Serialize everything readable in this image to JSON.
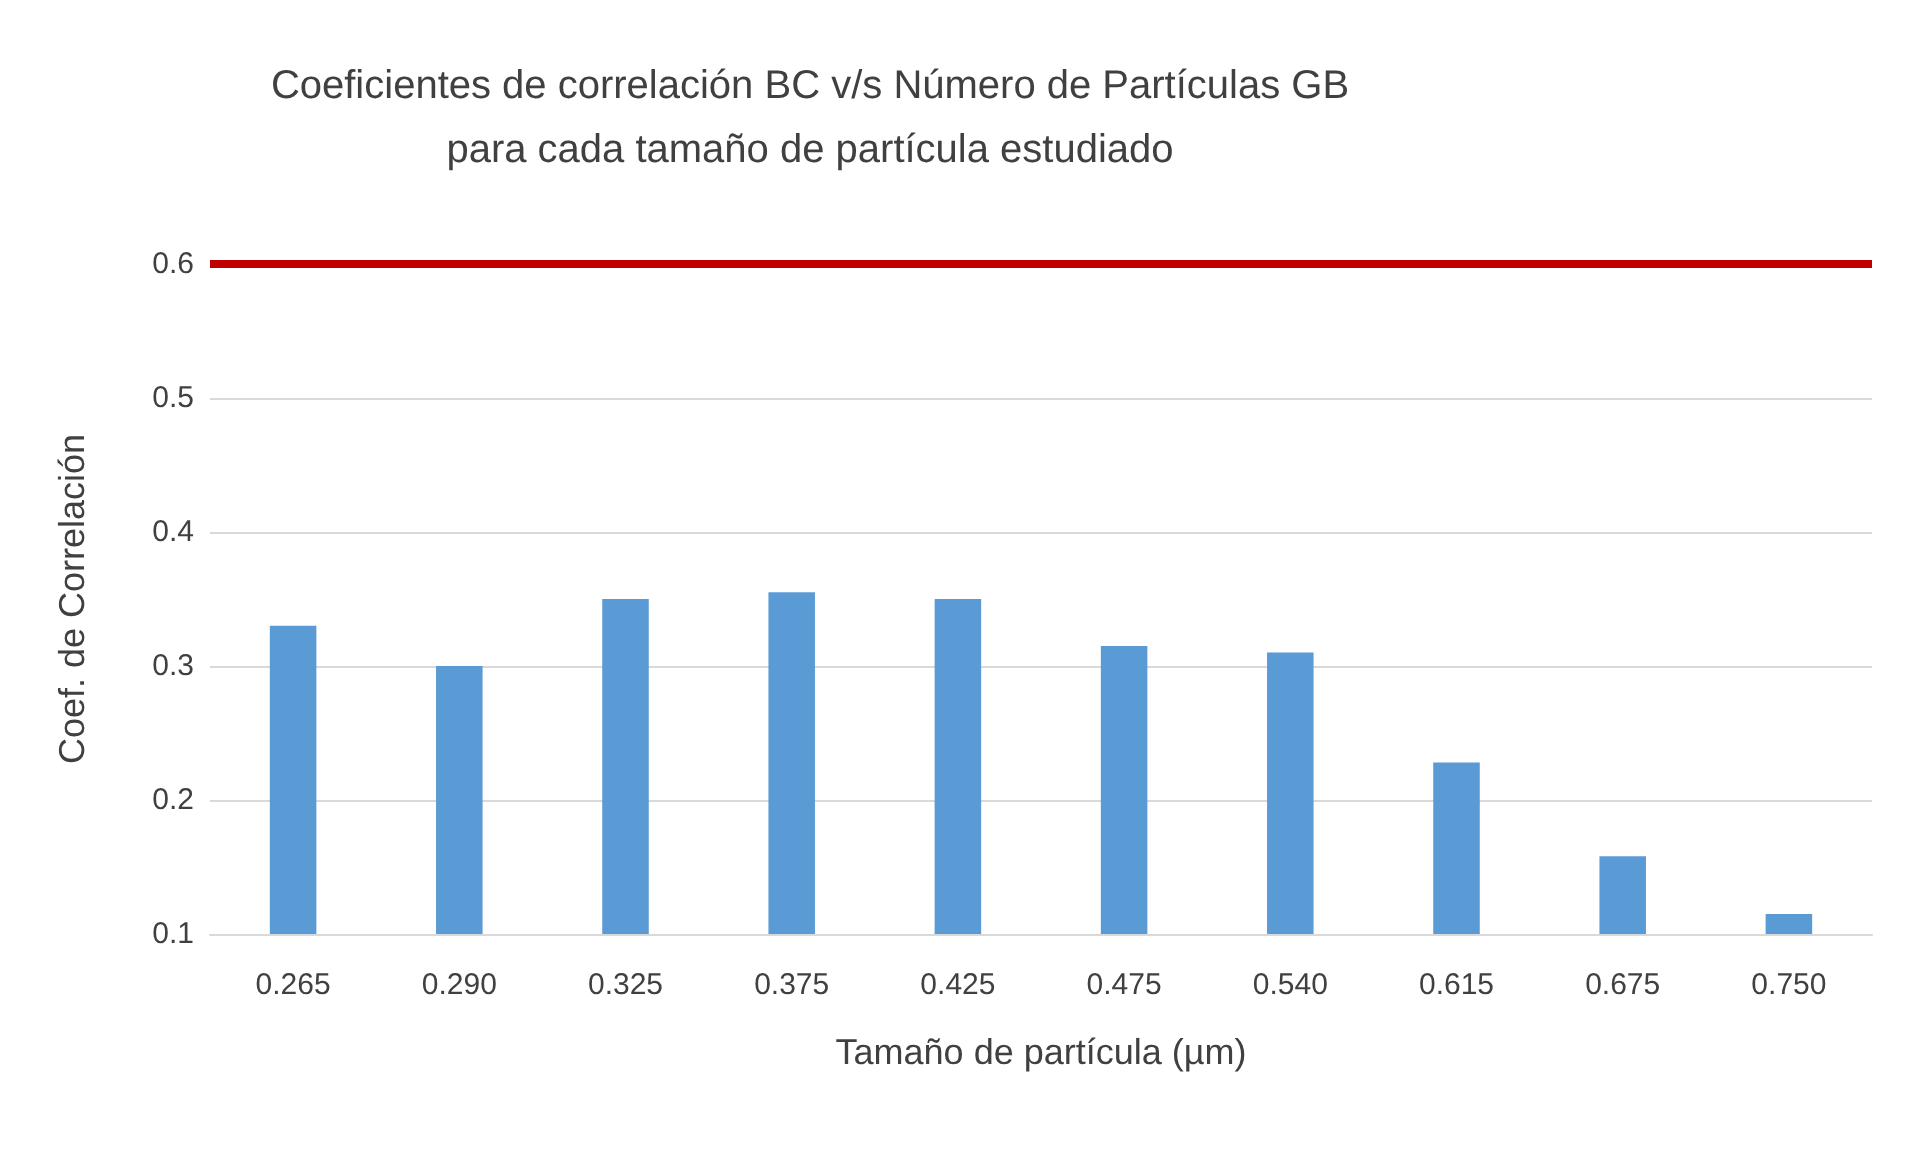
{
  "chart_data": {
    "type": "bar",
    "title": "Coeficientes de correlación BC v/s Número de Partículas GB\npara cada tamaño de partícula estudiado",
    "xlabel": "Tamaño de partícula (µm)",
    "ylabel": "Coef. de Correlación",
    "categories": [
      "0.265",
      "0.290",
      "0.325",
      "0.375",
      "0.425",
      "0.475",
      "0.540",
      "0.615",
      "0.675",
      "0.750"
    ],
    "values": [
      0.33,
      0.3,
      0.35,
      0.355,
      0.35,
      0.315,
      0.31,
      0.228,
      0.158,
      0.115
    ],
    "color": "#5b9bd5",
    "ylim": [
      0.1,
      0.6
    ],
    "yticks": [
      0.1,
      0.2,
      0.3,
      0.4,
      0.5,
      0.6
    ],
    "grid": "y",
    "ref_lines": [
      {
        "axis": "y",
        "value": 0.6,
        "label": null,
        "color": "#c00000"
      }
    ]
  }
}
